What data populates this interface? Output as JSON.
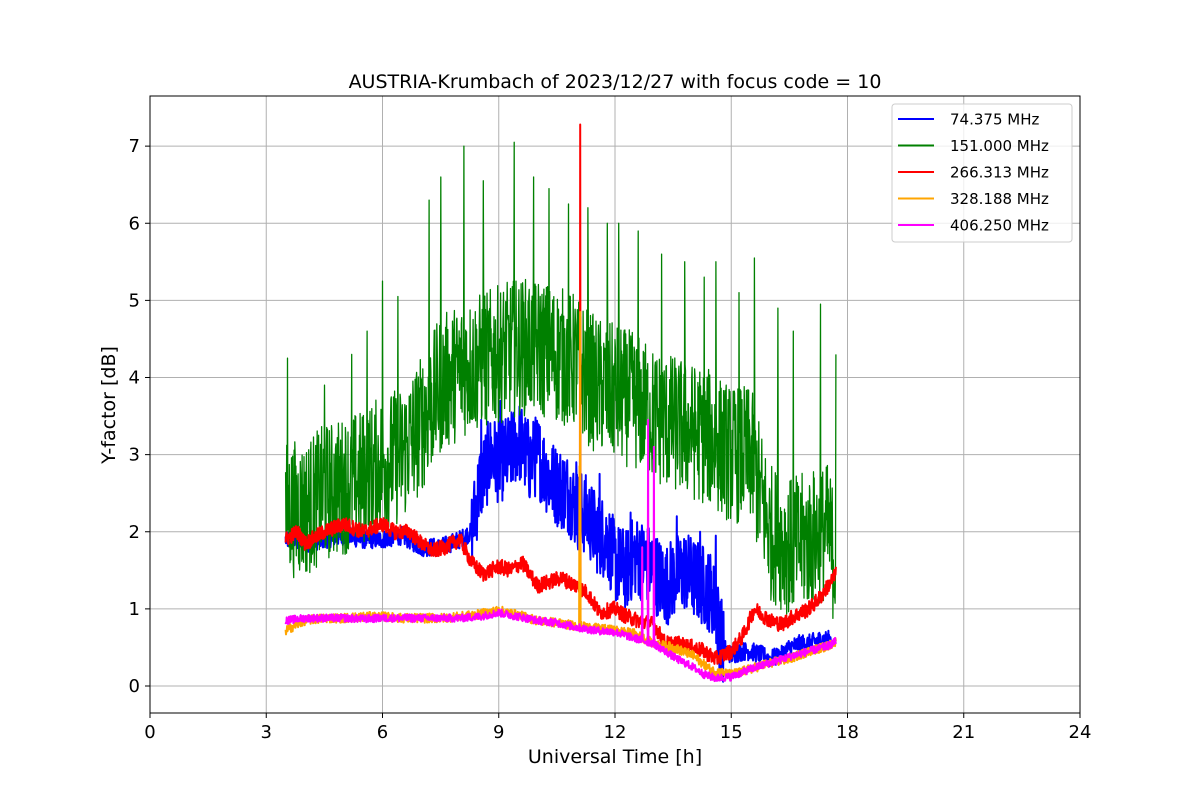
{
  "chart_data": {
    "type": "line",
    "title": "AUSTRIA-Krumbach of 2023/12/27 with focus code = 10",
    "xlabel": "Universal Time [h]",
    "ylabel": "Y-factor [dB]",
    "xlim": [
      0,
      24
    ],
    "ylim": [
      -0.35,
      7.65
    ],
    "xticks": [
      0,
      3,
      6,
      9,
      12,
      15,
      18,
      21,
      24
    ],
    "yticks": [
      0,
      1,
      2,
      3,
      4,
      5,
      6,
      7
    ],
    "grid": true,
    "legend_position": "top-right",
    "series": [
      {
        "name": " 74.375 MHz",
        "color": "#0000ff",
        "x": [
          3.5,
          4.0,
          4.5,
          5.0,
          5.5,
          6.0,
          6.5,
          7.0,
          7.5,
          8.0,
          8.3,
          8.5,
          8.8,
          9.0,
          9.3,
          9.5,
          9.8,
          10.0,
          10.3,
          10.5,
          10.8,
          11.0,
          11.3,
          11.5,
          11.8,
          12.0,
          12.3,
          12.5,
          12.8,
          13.0,
          13.3,
          13.5,
          13.8,
          14.0,
          14.3,
          14.5,
          14.8,
          15.0,
          15.3,
          15.5,
          15.8,
          16.0,
          16.3,
          16.5,
          16.8,
          17.0,
          17.3,
          17.6
        ],
        "y": [
          1.9,
          1.85,
          1.9,
          1.95,
          1.9,
          1.9,
          1.95,
          1.8,
          1.8,
          1.9,
          2.0,
          2.6,
          3.0,
          2.9,
          3.0,
          3.2,
          2.9,
          3.0,
          2.7,
          2.6,
          2.5,
          2.3,
          2.2,
          2.0,
          1.9,
          1.6,
          1.5,
          1.7,
          1.6,
          1.5,
          1.3,
          1.4,
          1.5,
          1.4,
          1.3,
          1.2,
          0.5,
          0.4,
          0.45,
          0.45,
          0.4,
          0.35,
          0.4,
          0.5,
          0.55,
          0.55,
          0.6,
          0.6
        ],
        "peaks": [
          [
            8.55,
            3.45
          ],
          [
            9.05,
            3.7
          ],
          [
            9.55,
            3.55
          ],
          [
            9.9,
            3.4
          ],
          [
            11.0,
            2.9
          ],
          [
            11.6,
            2.75
          ],
          [
            12.4,
            2.25
          ],
          [
            13.6,
            2.2
          ],
          [
            14.2,
            2.0
          ],
          [
            14.6,
            1.95
          ]
        ]
      },
      {
        "name": "151.000 MHz",
        "color": "#008000",
        "x": [
          3.5,
          4.0,
          4.5,
          5.0,
          5.5,
          6.0,
          6.5,
          7.0,
          7.5,
          8.0,
          8.5,
          9.0,
          9.5,
          10.0,
          10.5,
          11.0,
          11.5,
          12.0,
          12.5,
          13.0,
          13.5,
          14.0,
          14.5,
          15.0,
          15.5,
          16.0,
          16.5,
          17.0,
          17.5,
          17.7
        ],
        "y": [
          2.3,
          2.3,
          2.5,
          2.6,
          2.7,
          2.9,
          3.0,
          3.4,
          3.9,
          4.1,
          4.2,
          4.3,
          4.4,
          4.4,
          4.3,
          4.2,
          3.9,
          3.8,
          3.7,
          3.5,
          3.4,
          3.3,
          3.2,
          3.0,
          3.0,
          2.0,
          1.8,
          1.9,
          2.0,
          1.6
        ],
        "peaks": [
          [
            3.55,
            4.25
          ],
          [
            4.5,
            3.9
          ],
          [
            5.2,
            4.3
          ],
          [
            5.6,
            4.6
          ],
          [
            6.0,
            5.25
          ],
          [
            6.4,
            5.05
          ],
          [
            7.2,
            6.3
          ],
          [
            7.5,
            6.6
          ],
          [
            8.1,
            7.0
          ],
          [
            8.6,
            6.55
          ],
          [
            9.4,
            7.05
          ],
          [
            9.9,
            6.6
          ],
          [
            10.3,
            6.45
          ],
          [
            10.8,
            6.25
          ],
          [
            11.3,
            6.2
          ],
          [
            11.8,
            6.0
          ],
          [
            12.1,
            6.0
          ],
          [
            12.6,
            5.9
          ],
          [
            13.2,
            5.6
          ],
          [
            13.8,
            5.5
          ],
          [
            14.3,
            5.3
          ],
          [
            14.6,
            5.5
          ],
          [
            15.2,
            5.1
          ],
          [
            15.6,
            5.55
          ],
          [
            16.2,
            4.9
          ],
          [
            16.6,
            4.6
          ],
          [
            17.3,
            4.95
          ],
          [
            17.7,
            4.3
          ]
        ]
      },
      {
        "name": "266.313 MHz",
        "color": "#ff0000",
        "x": [
          3.5,
          3.8,
          4.0,
          4.5,
          5.0,
          5.5,
          6.0,
          6.3,
          6.7,
          7.0,
          7.3,
          7.6,
          8.0,
          8.3,
          8.6,
          9.0,
          9.3,
          9.6,
          10.0,
          10.3,
          10.6,
          11.0,
          11.3,
          11.6,
          12.0,
          12.3,
          12.6,
          13.0,
          13.3,
          13.6,
          14.0,
          14.3,
          14.6,
          15.0,
          15.3,
          15.6,
          16.0,
          16.3,
          16.6,
          17.0,
          17.3,
          17.7
        ],
        "y": [
          1.9,
          2.0,
          1.85,
          2.0,
          2.1,
          2.0,
          2.1,
          2.0,
          2.0,
          1.85,
          1.75,
          1.8,
          1.9,
          1.6,
          1.45,
          1.55,
          1.5,
          1.6,
          1.3,
          1.35,
          1.4,
          1.3,
          1.2,
          0.95,
          1.0,
          0.9,
          0.85,
          0.8,
          0.55,
          0.55,
          0.5,
          0.45,
          0.35,
          0.45,
          0.65,
          1.0,
          0.85,
          0.8,
          0.9,
          1.0,
          1.15,
          1.45
        ],
        "peaks": [
          [
            11.1,
            7.28
          ]
        ]
      },
      {
        "name": "328.188 MHz",
        "color": "#ffa500",
        "x": [
          3.5,
          4.0,
          4.5,
          5.0,
          5.5,
          6.0,
          6.5,
          7.0,
          7.5,
          8.0,
          8.5,
          9.0,
          9.5,
          10.0,
          10.5,
          11.0,
          11.5,
          12.0,
          12.5,
          13.0,
          13.5,
          14.0,
          14.5,
          15.0,
          15.5,
          16.0,
          16.5,
          17.0,
          17.5,
          17.7
        ],
        "y": [
          0.72,
          0.85,
          0.88,
          0.88,
          0.9,
          0.9,
          0.88,
          0.88,
          0.88,
          0.9,
          0.93,
          0.98,
          0.92,
          0.85,
          0.82,
          0.78,
          0.75,
          0.72,
          0.68,
          0.55,
          0.5,
          0.4,
          0.2,
          0.15,
          0.22,
          0.3,
          0.35,
          0.45,
          0.52,
          0.58
        ],
        "peaks": [
          [
            11.1,
            4.85
          ],
          [
            11.08,
            2.85
          ]
        ]
      },
      {
        "name": "406.250 MHz",
        "color": "#ff00ff",
        "x": [
          3.5,
          4.0,
          4.5,
          5.0,
          5.5,
          6.0,
          6.5,
          7.0,
          7.5,
          8.0,
          8.5,
          9.0,
          9.5,
          10.0,
          10.5,
          11.0,
          11.5,
          12.0,
          12.5,
          13.0,
          13.3,
          13.6,
          14.0,
          14.3,
          14.6,
          15.0,
          15.5,
          16.0,
          16.5,
          17.0,
          17.5,
          17.7
        ],
        "y": [
          0.85,
          0.88,
          0.88,
          0.88,
          0.87,
          0.88,
          0.88,
          0.88,
          0.88,
          0.88,
          0.9,
          0.95,
          0.9,
          0.85,
          0.82,
          0.76,
          0.72,
          0.7,
          0.62,
          0.55,
          0.45,
          0.35,
          0.25,
          0.15,
          0.1,
          0.12,
          0.22,
          0.3,
          0.38,
          0.45,
          0.52,
          0.58
        ],
        "peaks": [
          [
            12.85,
            3.45
          ],
          [
            13.0,
            3.1
          ],
          [
            12.7,
            1.8
          ]
        ]
      }
    ]
  }
}
